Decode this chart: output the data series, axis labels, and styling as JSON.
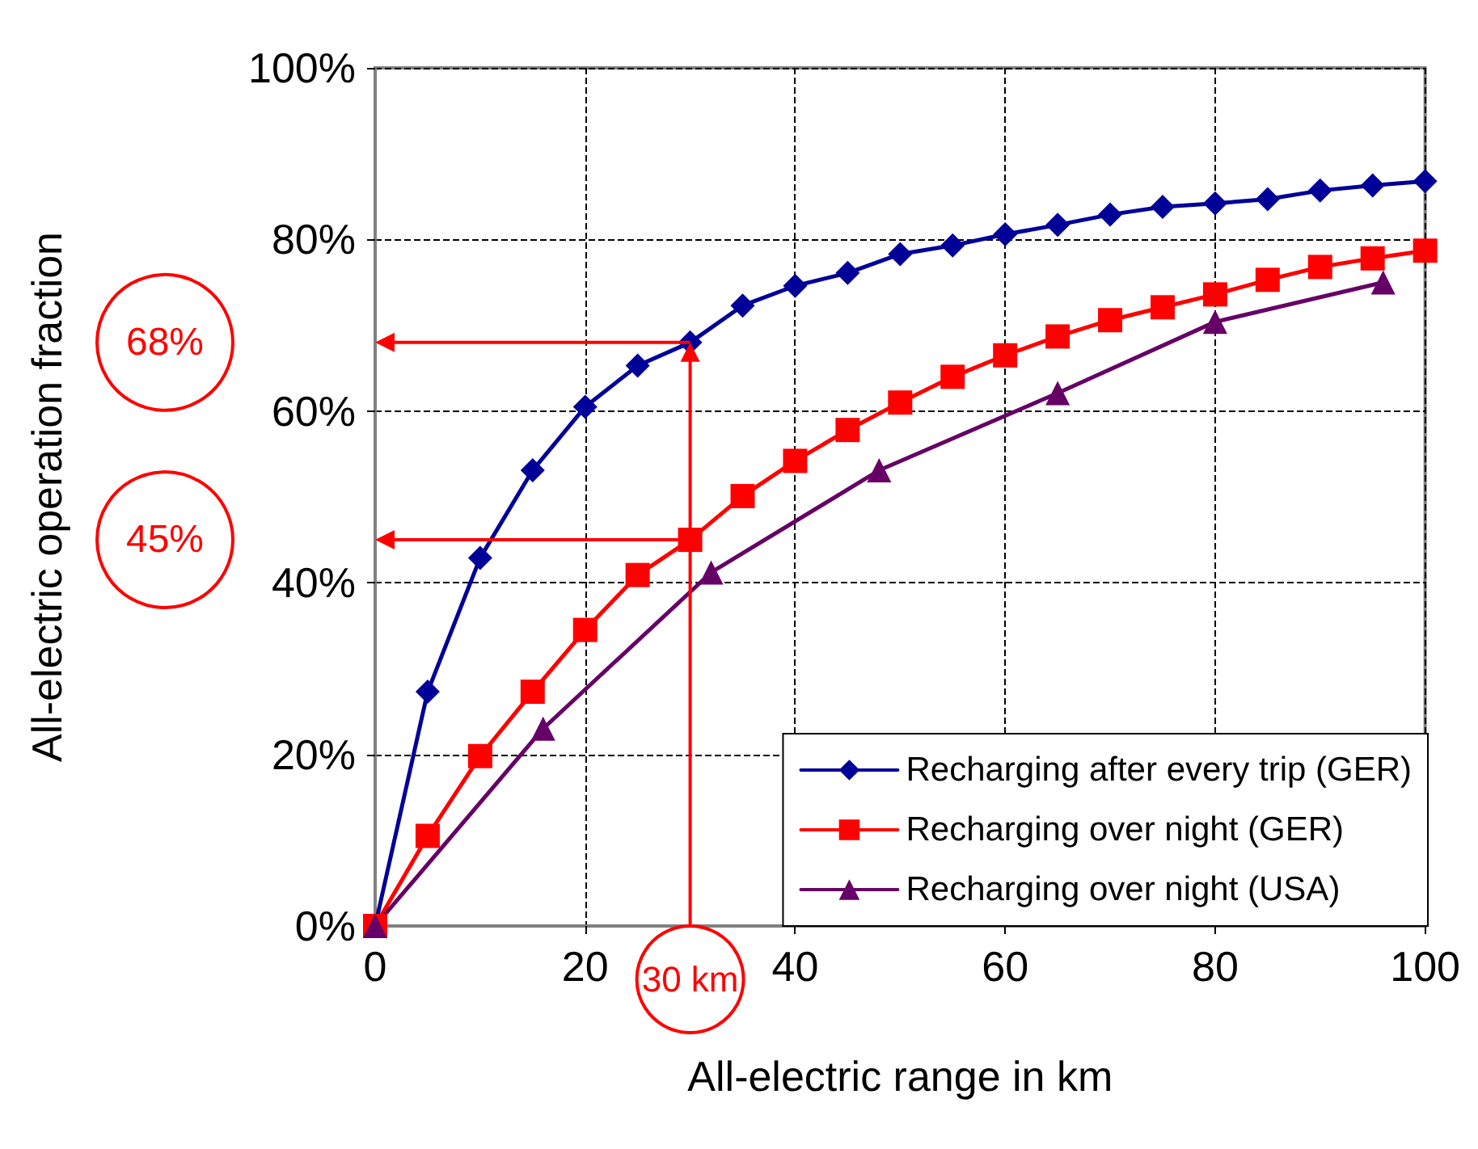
{
  "chart_data": {
    "type": "line",
    "xlabel": "All-electric range in km",
    "ylabel": "All-electric operation fraction",
    "xlim": [
      0,
      100
    ],
    "xticks": [
      0,
      20,
      40,
      60,
      80,
      100
    ],
    "ylim": [
      0,
      100
    ],
    "yticks": [
      {
        "value": 0,
        "label": "0%"
      },
      {
        "value": 20,
        "label": "20%"
      },
      {
        "value": 40,
        "label": "40%"
      },
      {
        "value": 60,
        "label": "60%"
      },
      {
        "value": 80,
        "label": "80%"
      },
      {
        "value": 100,
        "label": "100%"
      }
    ],
    "grid": true,
    "legend": "bottom right",
    "line_style": "solid",
    "series": [
      {
        "name": "Recharging after every trip (GER)",
        "color": "#000099",
        "marker": "diamond",
        "x": [
          0,
          5,
          10,
          15,
          20,
          25,
          30,
          35,
          40,
          45,
          50,
          55,
          60,
          65,
          70,
          75,
          80,
          85,
          90,
          95,
          100
        ],
        "values": [
          0,
          27.3,
          42.9,
          53.1,
          60.5,
          65.3,
          68,
          72.3,
          74.6,
          76.1,
          78.3,
          79.3,
          80.6,
          81.7,
          82.9,
          83.8,
          84.2,
          84.7,
          85.7,
          86.3,
          86.8
        ]
      },
      {
        "name": "Recharging over night (GER)",
        "color": "#ff0000",
        "marker": "square",
        "x": [
          0,
          5,
          10,
          15,
          20,
          25,
          30,
          35,
          40,
          45,
          50,
          55,
          60,
          65,
          70,
          75,
          80,
          85,
          90,
          95,
          100
        ],
        "values": [
          0,
          10.5,
          19.8,
          27.3,
          34.5,
          40.9,
          45,
          50.1,
          54.2,
          57.8,
          61,
          64,
          66.5,
          68.7,
          70.6,
          72.1,
          73.6,
          75.3,
          76.8,
          77.8,
          78.7
        ]
      },
      {
        "name": "Recharging over night (USA)",
        "color": "#660066",
        "marker": "triangle",
        "x": [
          0,
          16,
          32,
          48,
          65,
          80,
          96
        ],
        "values": [
          0,
          23,
          41.2,
          53.1,
          62.1,
          70.4,
          75
        ]
      }
    ],
    "ref_lines": [
      {
        "axis": "y",
        "value": 68,
        "label": "68%",
        "color": "#ff0000"
      },
      {
        "axis": "y",
        "value": 45,
        "label": "45%",
        "color": "#ff0000"
      },
      {
        "axis": "x",
        "value": 30,
        "label": "30 km",
        "color": "#ff0000"
      }
    ]
  }
}
